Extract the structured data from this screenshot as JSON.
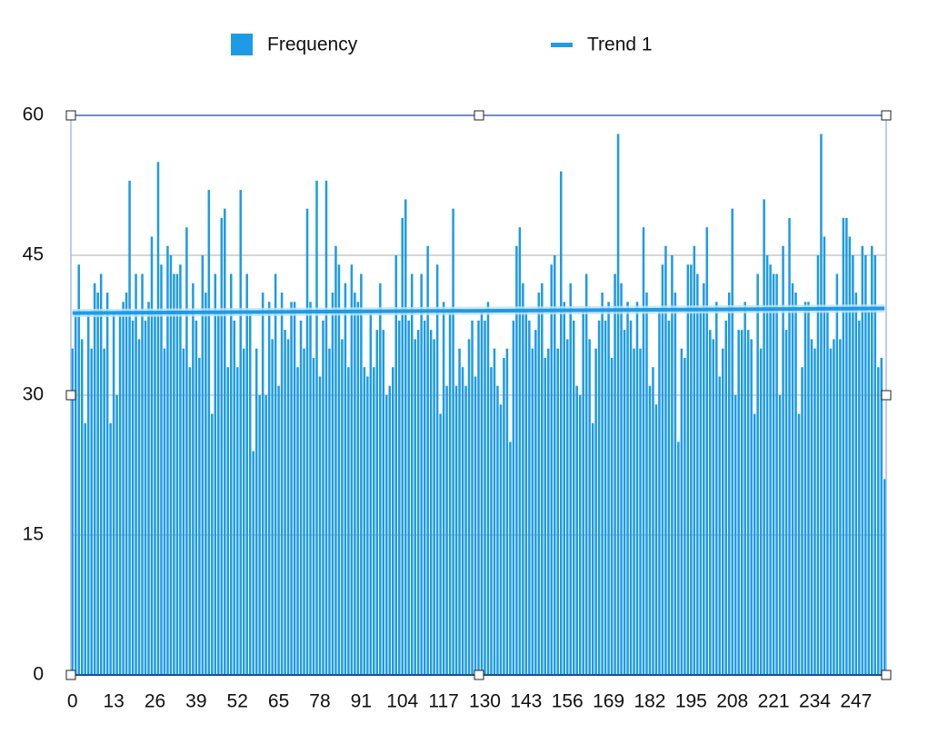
{
  "chart_data": {
    "type": "bar",
    "x": [
      0,
      1,
      2,
      3,
      4,
      5,
      6,
      7,
      8,
      9,
      10,
      11,
      12,
      13,
      14,
      15,
      16,
      17,
      18,
      19,
      20,
      21,
      22,
      23,
      24,
      25,
      26,
      27,
      28,
      29,
      30,
      31,
      32,
      33,
      34,
      35,
      36,
      37,
      38,
      39,
      40,
      41,
      42,
      43,
      44,
      45,
      46,
      47,
      48,
      49,
      50,
      51,
      52,
      53,
      54,
      55,
      56,
      57,
      58,
      59,
      60,
      61,
      62,
      63,
      64,
      65,
      66,
      67,
      68,
      69,
      70,
      71,
      72,
      73,
      74,
      75,
      76,
      77,
      78,
      79,
      80,
      81,
      82,
      83,
      84,
      85,
      86,
      87,
      88,
      89,
      90,
      91,
      92,
      93,
      94,
      95,
      96,
      97,
      98,
      99,
      100,
      101,
      102,
      103,
      104,
      105,
      106,
      107,
      108,
      109,
      110,
      111,
      112,
      113,
      114,
      115,
      116,
      117,
      118,
      119,
      120,
      121,
      122,
      123,
      124,
      125,
      126,
      127,
      128,
      129,
      130,
      131,
      132,
      133,
      134,
      135,
      136,
      137,
      138,
      139,
      140,
      141,
      142,
      143,
      144,
      145,
      146,
      147,
      148,
      149,
      150,
      151,
      152,
      153,
      154,
      155,
      156,
      157,
      158,
      159,
      160,
      161,
      162,
      163,
      164,
      165,
      166,
      167,
      168,
      169,
      170,
      171,
      172,
      173,
      174,
      175,
      176,
      177,
      178,
      179,
      180,
      181,
      182,
      183,
      184,
      185,
      186,
      187,
      188,
      189,
      190,
      191,
      192,
      193,
      194,
      195,
      196,
      197,
      198,
      199,
      200,
      201,
      202,
      203,
      204,
      205,
      206,
      207,
      208,
      209,
      210,
      211,
      212,
      213,
      214,
      215,
      216,
      217,
      218,
      219,
      220,
      221,
      222,
      223,
      224,
      225,
      226,
      227,
      228,
      229,
      230,
      231,
      232,
      233,
      234,
      235,
      236,
      237,
      238,
      239,
      240,
      241,
      242,
      243,
      244,
      245,
      246,
      247,
      248,
      249,
      250,
      251,
      252,
      253,
      254,
      255,
      256
    ],
    "series": [
      {
        "name": "Frequency",
        "color": "#1e9be6",
        "values": [
          35,
          39,
          44,
          36,
          27,
          39,
          35,
          42,
          41,
          43,
          35,
          41,
          27,
          39,
          30,
          39,
          40,
          41,
          53,
          38,
          43,
          36,
          43,
          38,
          40,
          47,
          39,
          55,
          44,
          35,
          46,
          45,
          43,
          43,
          44,
          35,
          48,
          33,
          42,
          38,
          34,
          45,
          41,
          52,
          28,
          43,
          39,
          49,
          50,
          33,
          43,
          38,
          33,
          52,
          35,
          43,
          39,
          24,
          35,
          30,
          41,
          30,
          40,
          36,
          43,
          31,
          41,
          37,
          36,
          40,
          40,
          33,
          38,
          35,
          50,
          40,
          34,
          53,
          32,
          38,
          53,
          35,
          41,
          46,
          44,
          36,
          42,
          33,
          44,
          41,
          40,
          43,
          33,
          32,
          39,
          33,
          37,
          42,
          37,
          30,
          31,
          33,
          45,
          38,
          49,
          51,
          38,
          43,
          36,
          37,
          43,
          38,
          46,
          37,
          36,
          44,
          28,
          40,
          31,
          39,
          50,
          31,
          35,
          33,
          31,
          36,
          38,
          32,
          38,
          39,
          38,
          40,
          33,
          35,
          31,
          29,
          34,
          35,
          25,
          38,
          46,
          48,
          42,
          39,
          38,
          35,
          37,
          41,
          42,
          34,
          35,
          44,
          45,
          35,
          54,
          40,
          36,
          42,
          38,
          31,
          30,
          39,
          43,
          36,
          27,
          35,
          38,
          41,
          38,
          40,
          34,
          43,
          58,
          42,
          37,
          40,
          38,
          35,
          40,
          35,
          48,
          41,
          31,
          33,
          29,
          39,
          44,
          46,
          38,
          45,
          41,
          25,
          35,
          34,
          44,
          44,
          46,
          43,
          39,
          42,
          48,
          37,
          36,
          40,
          32,
          35,
          38,
          41,
          50,
          30,
          37,
          37,
          40,
          37,
          36,
          28,
          43,
          35,
          51,
          45,
          44,
          43,
          43,
          30,
          46,
          37,
          49,
          42,
          41,
          28,
          33,
          40,
          40,
          36,
          35,
          45,
          58,
          47,
          39,
          35,
          36,
          43,
          36,
          49,
          49,
          47,
          45,
          41,
          38,
          46,
          45,
          39,
          46,
          45,
          33,
          34,
          21
        ]
      },
      {
        "name": "Trend 1",
        "type": "line",
        "color": "#1e9be6",
        "x": [
          0,
          256
        ],
        "values": [
          38.8,
          39.3
        ]
      }
    ],
    "xlim": [
      -0.5,
      256.5
    ],
    "xticks": [
      0,
      13,
      26,
      39,
      52,
      65,
      78,
      91,
      104,
      117,
      130,
      143,
      156,
      169,
      182,
      195,
      208,
      221,
      234,
      247
    ],
    "ylim": [
      0,
      60
    ],
    "yticks": [
      0,
      15,
      30,
      45,
      60
    ],
    "grid": true,
    "legend": "top"
  }
}
